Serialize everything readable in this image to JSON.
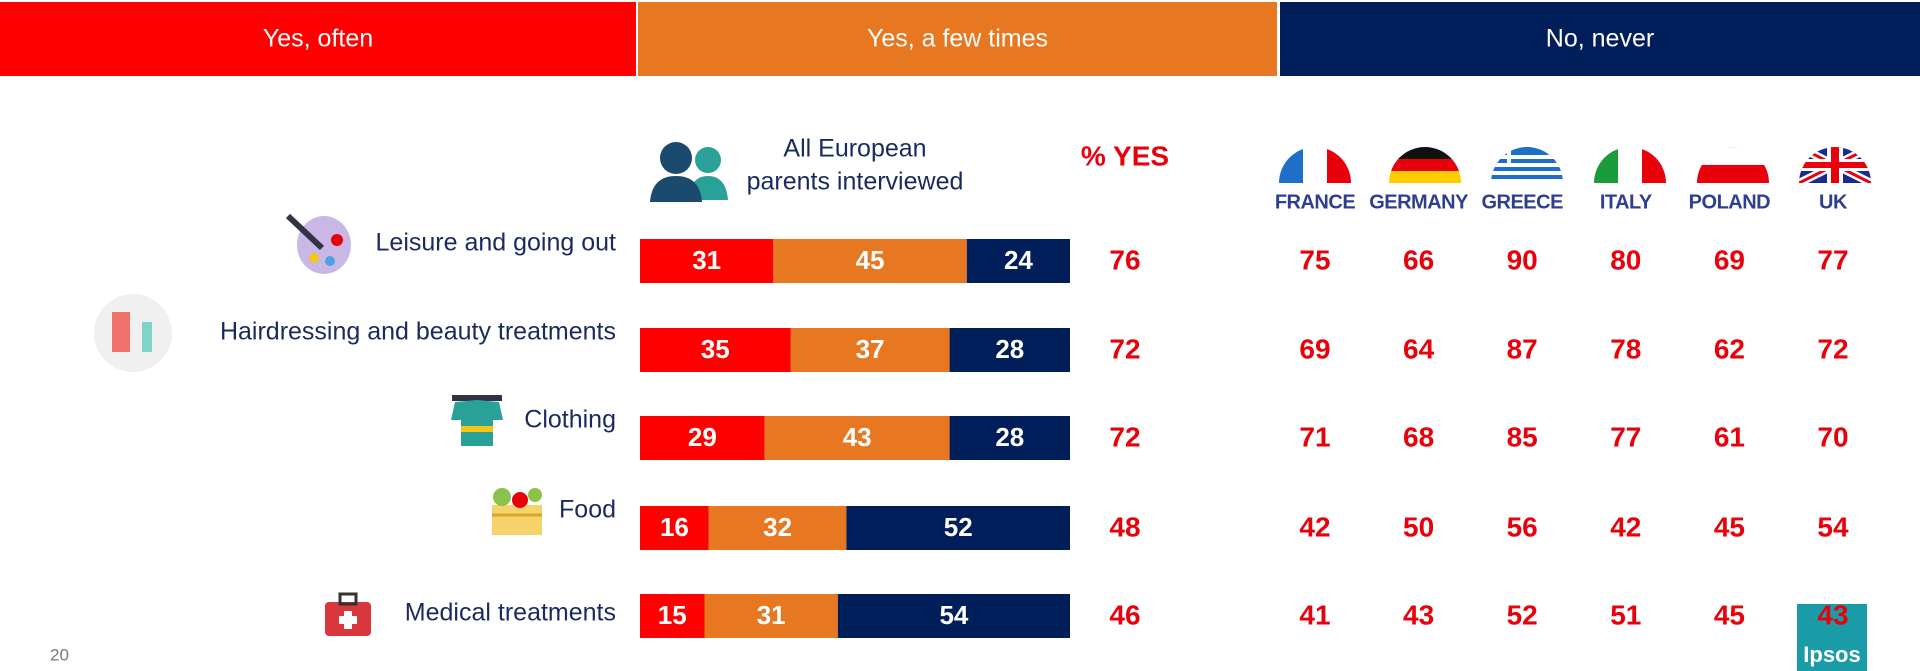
{
  "chart_data": {
    "type": "stacked-bar",
    "categories": [
      "Leisure and going out",
      "Hairdressing and beauty treatments",
      "Clothing",
      "Food",
      "Medical treatments"
    ],
    "series": [
      {
        "name": "Yes, often",
        "color": "#ff0000",
        "values": [
          31,
          35,
          29,
          16,
          15
        ]
      },
      {
        "name": "Yes, a few times",
        "color": "#e87722",
        "values": [
          45,
          37,
          43,
          32,
          31
        ]
      },
      {
        "name": "No, never",
        "color": "#001e5a",
        "values": [
          24,
          28,
          28,
          52,
          54
        ]
      }
    ]
  },
  "sample_label": [
    "All European",
    "parents interviewed"
  ],
  "yes_column": {
    "label": "% YES",
    "values": [
      76,
      72,
      72,
      48,
      46
    ]
  },
  "countries": {
    "names": [
      "FRANCE",
      "GERMANY",
      "GREECE",
      "ITALY",
      "POLAND",
      "UK"
    ],
    "values": [
      [
        75,
        66,
        90,
        80,
        69,
        77
      ],
      [
        69,
        64,
        87,
        78,
        62,
        72
      ],
      [
        71,
        68,
        85,
        77,
        61,
        70
      ],
      [
        42,
        50,
        56,
        42,
        45,
        54
      ],
      [
        41,
        43,
        52,
        51,
        45,
        43
      ]
    ]
  },
  "page_number": "20",
  "logo": "Ipsos"
}
